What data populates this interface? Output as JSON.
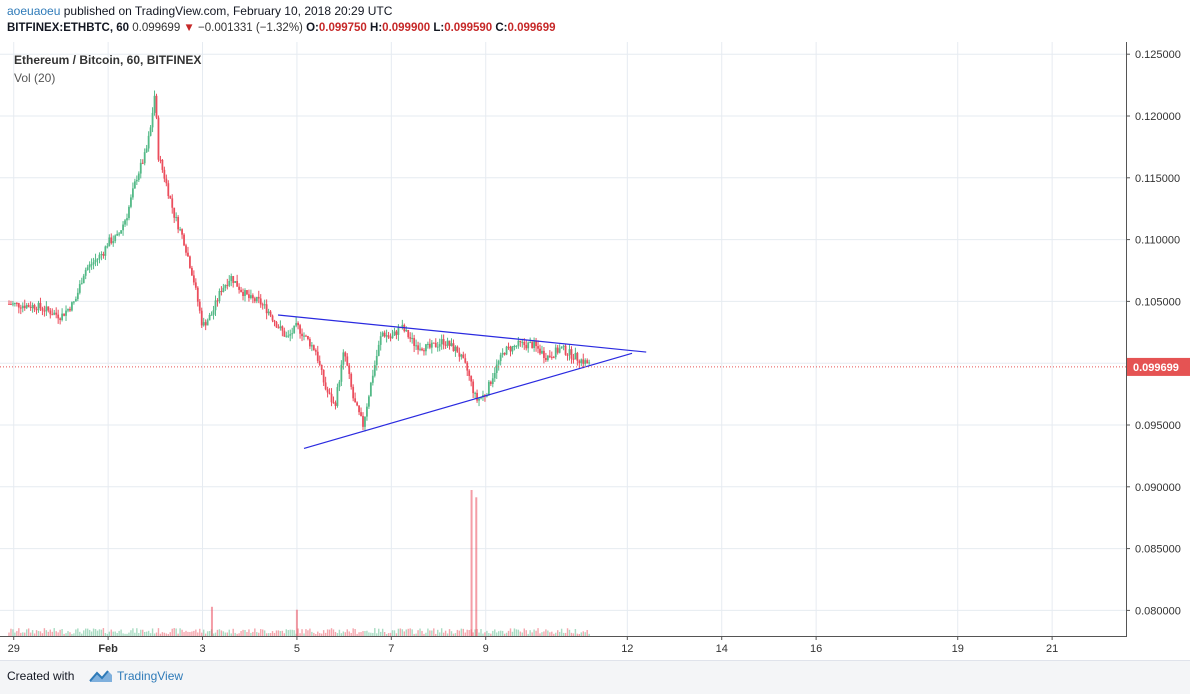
{
  "header": {
    "author": "aoeuaoeu",
    "published": "published on TradingView.com, February 10, 2018 20:29 UTC",
    "symbol": "BITFINEX:ETHBTC, 60",
    "last": "0.099699",
    "change": "−0.001331 (−1.32%)",
    "o_label": "O:",
    "o_value": "0.099750",
    "h_label": "H:",
    "h_value": "0.099900",
    "l_label": "L:",
    "l_value": "0.099590",
    "c_label": "C:",
    "c_value": "0.099699"
  },
  "legend": {
    "title": "Ethereum / Bitcoin, 60, BITFINEX",
    "vol": "Vol (20)"
  },
  "footer": {
    "created": "Created with",
    "brand": "TradingView"
  },
  "colors": {
    "up": "#53b987",
    "down": "#eb4d5c",
    "trendline": "#2a2ae0",
    "grid": "#e6ebf1",
    "last_price_bg": "#e55353",
    "accent": "#2e7ab8"
  },
  "chart_data": {
    "type": "candlestick",
    "y_ticks": [
      "0.125000",
      "0.120000",
      "0.115000",
      "0.110000",
      "0.105000",
      "0.100000",
      "0.095000",
      "0.090000",
      "0.085000",
      "0.080000"
    ],
    "x_ticks": [
      "29",
      "Feb",
      "3",
      "5",
      "7",
      "9",
      "12",
      "14",
      "16",
      "19",
      "21"
    ],
    "ylim": [
      0.0778,
      0.1263
    ],
    "x_tick_days": [
      29,
      31,
      33,
      35,
      37,
      39,
      42,
      44,
      46,
      49,
      51
    ],
    "last_price_label": "0.099699",
    "last_price": 0.099699,
    "series_keypoints": [
      [
        28.9,
        0.1048
      ],
      [
        29.5,
        0.1046
      ],
      [
        30.0,
        0.1038
      ],
      [
        30.3,
        0.105
      ],
      [
        30.5,
        0.1075
      ],
      [
        30.7,
        0.1082
      ],
      [
        30.9,
        0.109
      ],
      [
        31.0,
        0.1098
      ],
      [
        31.2,
        0.1102
      ],
      [
        31.4,
        0.112
      ],
      [
        31.6,
        0.115
      ],
      [
        31.8,
        0.117
      ],
      [
        31.9,
        0.119
      ],
      [
        32.0,
        0.1222
      ],
      [
        32.05,
        0.117
      ],
      [
        32.2,
        0.115
      ],
      [
        32.4,
        0.112
      ],
      [
        32.6,
        0.11
      ],
      [
        32.8,
        0.107
      ],
      [
        33.0,
        0.103
      ],
      [
        33.2,
        0.104
      ],
      [
        33.4,
        0.106
      ],
      [
        33.6,
        0.107
      ],
      [
        33.8,
        0.106
      ],
      [
        34.0,
        0.1052
      ],
      [
        34.2,
        0.105
      ],
      [
        34.4,
        0.1042
      ],
      [
        34.6,
        0.103
      ],
      [
        34.8,
        0.102
      ],
      [
        35.0,
        0.103
      ],
      [
        35.2,
        0.102
      ],
      [
        35.4,
        0.101
      ],
      [
        35.6,
        0.098
      ],
      [
        35.8,
        0.0965
      ],
      [
        36.0,
        0.101
      ],
      [
        36.2,
        0.097
      ],
      [
        36.4,
        0.095
      ],
      [
        36.6,
        0.099
      ],
      [
        36.8,
        0.1025
      ],
      [
        37.0,
        0.102
      ],
      [
        37.2,
        0.103
      ],
      [
        37.5,
        0.1015
      ],
      [
        37.8,
        0.1012
      ],
      [
        38.1,
        0.1018
      ],
      [
        38.4,
        0.101
      ],
      [
        38.6,
        0.0995
      ],
      [
        38.8,
        0.097
      ],
      [
        39.0,
        0.0975
      ],
      [
        39.2,
        0.0995
      ],
      [
        39.4,
        0.101
      ],
      [
        39.7,
        0.1015
      ],
      [
        40.0,
        0.1015
      ],
      [
        40.3,
        0.1005
      ],
      [
        40.6,
        0.1012
      ],
      [
        40.9,
        0.1005
      ],
      [
        41.2,
        0.0999
      ]
    ],
    "volume_spikes": [
      {
        "day": 38.7,
        "value": 1.0
      },
      {
        "day": 38.8,
        "value": 0.95
      },
      {
        "day": 35.0,
        "value": 0.18
      },
      {
        "day": 33.2,
        "value": 0.2
      }
    ],
    "trendlines": [
      {
        "name": "upper",
        "from": {
          "day": 34.6,
          "price": 0.1039
        },
        "to": {
          "day": 42.4,
          "price": 0.1009
        }
      },
      {
        "name": "lower",
        "from": {
          "day": 35.15,
          "price": 0.0931
        },
        "to": {
          "day": 42.1,
          "price": 0.1008
        }
      }
    ]
  }
}
